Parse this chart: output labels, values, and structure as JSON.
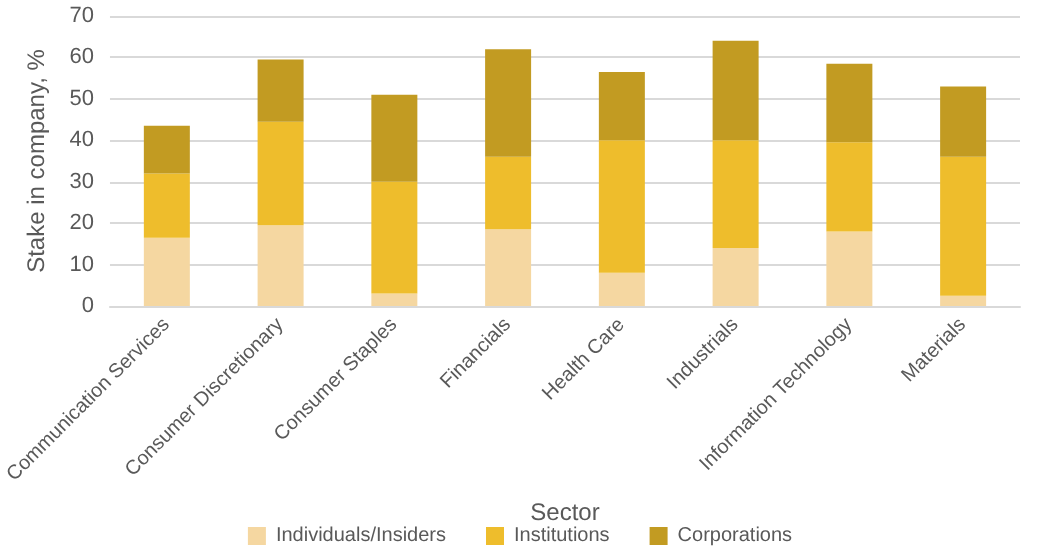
{
  "chart_data": {
    "type": "bar",
    "stacked": true,
    "xlabel": "Sector",
    "ylabel": "Stake in company, %",
    "categories": [
      "Communication Services",
      "Consumer Discretionary",
      "Consumer Staples",
      "Financials",
      "Health Care",
      "Industrials",
      "Information Technology",
      "Materials"
    ],
    "series": [
      {
        "name": "Individuals/Insiders",
        "color": "#f5d7a1",
        "values": [
          16.5,
          19.5,
          3,
          18.5,
          8,
          14,
          18,
          2.5
        ]
      },
      {
        "name": "Institutions",
        "color": "#eebd2c",
        "values": [
          15.5,
          25,
          27,
          17.5,
          32,
          26,
          21.5,
          33.5
        ]
      },
      {
        "name": "Corporations",
        "color": "#c29b22",
        "values": [
          11.5,
          15,
          21,
          26,
          16.5,
          24,
          19,
          17
        ]
      }
    ],
    "ylim": [
      0,
      70
    ],
    "yticks": [
      0,
      10,
      20,
      30,
      40,
      50,
      60,
      70
    ],
    "grid": "y",
    "legend": "bottom"
  }
}
